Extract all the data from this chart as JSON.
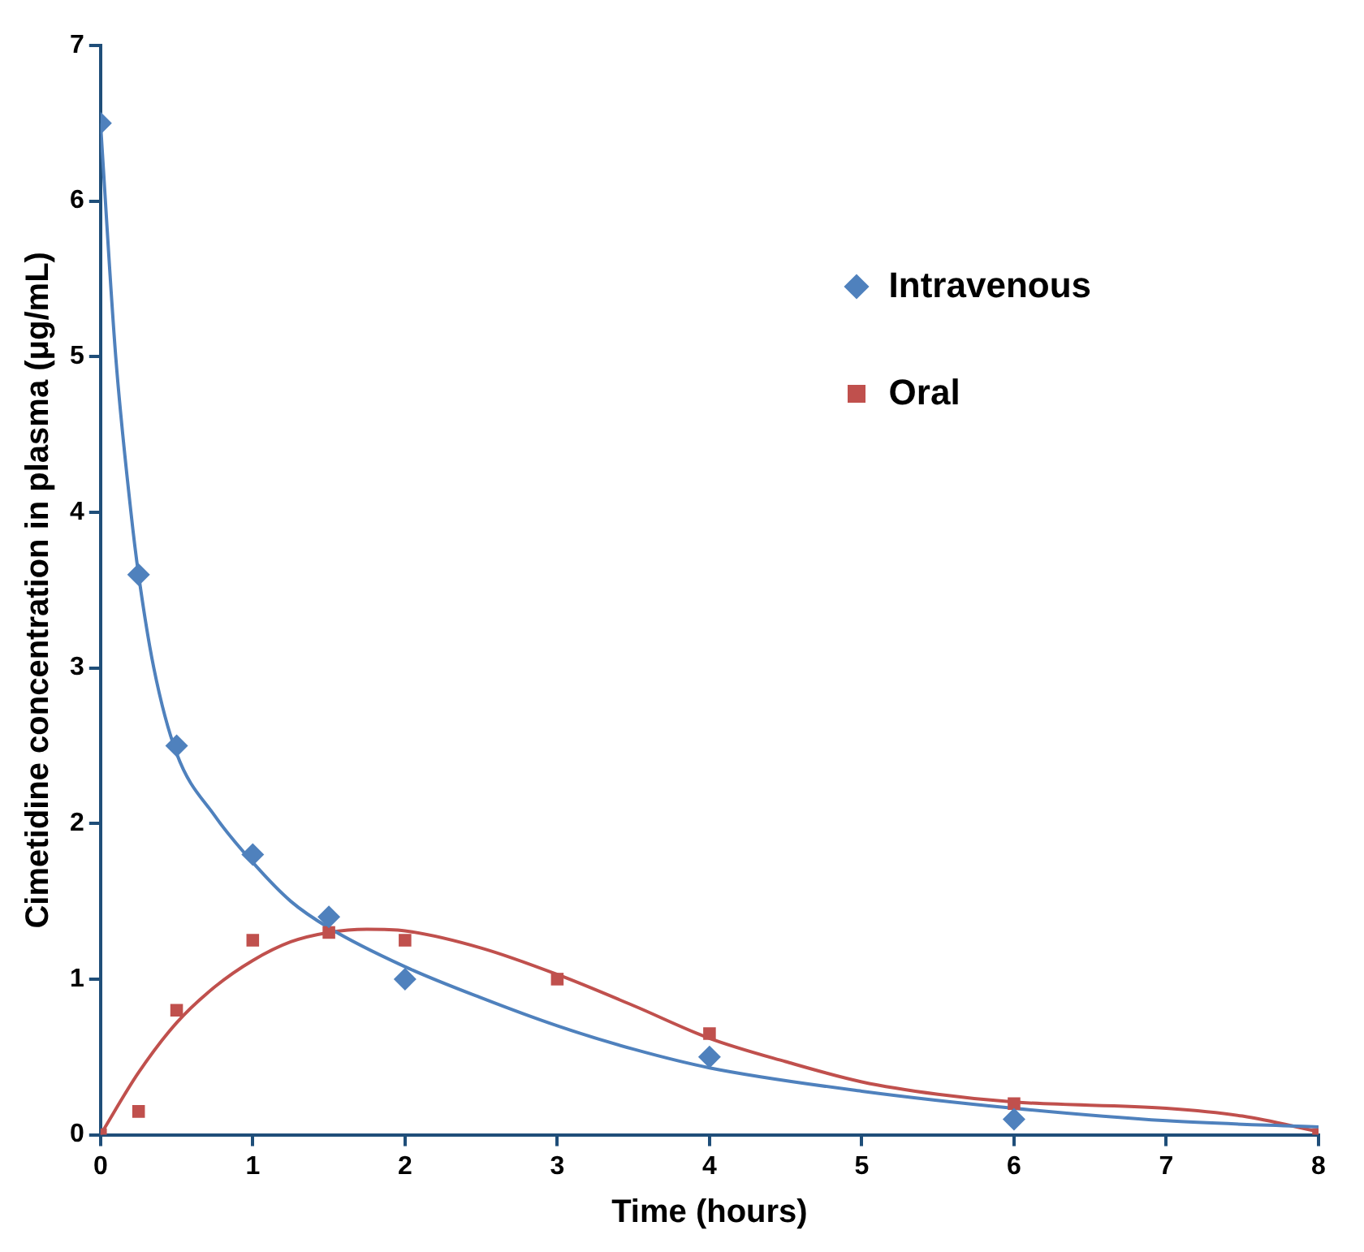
{
  "chart_data": {
    "type": "scatter",
    "xlabel": "Time (hours)",
    "ylabel": "Cimetidine concentration in plasma (μg/mL)",
    "xlim": [
      0,
      8
    ],
    "xticks": [
      0,
      1,
      2,
      3,
      4,
      5,
      6,
      7,
      8
    ],
    "ylim": [
      0,
      7
    ],
    "yticks": [
      0,
      1,
      2,
      3,
      4,
      5,
      6,
      7
    ],
    "grid": false,
    "legend": "top right",
    "series": [
      {
        "name": "Intravenous",
        "type": "scatter",
        "marker": "diamond",
        "color": "#4f81bd",
        "x": [
          0,
          0.25,
          0.5,
          1,
          1.5,
          2,
          4,
          6
        ],
        "values": [
          6.5,
          3.6,
          2.5,
          1.8,
          1.4,
          1.0,
          0.5,
          0.1
        ]
      },
      {
        "name": "Oral",
        "type": "scatter",
        "marker": "square",
        "color": "#c0504d",
        "x": [
          0,
          0.25,
          0.5,
          1,
          1.5,
          2,
          3,
          4,
          6,
          8
        ],
        "values": [
          0,
          0.15,
          0.8,
          1.25,
          1.3,
          1.25,
          1.0,
          0.65,
          0.2,
          0
        ]
      },
      {
        "type": "line",
        "marker": "none",
        "color": "#4f81bd",
        "x": [
          0,
          0.1,
          0.2,
          0.25,
          0.35,
          0.5,
          0.75,
          1,
          1.25,
          1.5,
          2,
          2.5,
          3,
          3.5,
          4,
          5,
          6,
          7,
          8
        ],
        "values": [
          6.5,
          5.0,
          4.0,
          3.6,
          3.0,
          2.45,
          2.05,
          1.75,
          1.5,
          1.33,
          1.08,
          0.88,
          0.7,
          0.55,
          0.43,
          0.28,
          0.17,
          0.09,
          0.05
        ]
      },
      {
        "type": "line",
        "marker": "none",
        "color": "#c0504d",
        "x": [
          0,
          0.25,
          0.5,
          0.75,
          1,
          1.25,
          1.5,
          1.75,
          2,
          2.5,
          3,
          3.5,
          4,
          4.5,
          5,
          5.5,
          6,
          7,
          7.5,
          8
        ],
        "values": [
          0,
          0.4,
          0.72,
          0.95,
          1.12,
          1.24,
          1.3,
          1.32,
          1.31,
          1.2,
          1.03,
          0.83,
          0.62,
          0.47,
          0.34,
          0.26,
          0.21,
          0.17,
          0.12,
          0.02
        ]
      }
    ]
  }
}
